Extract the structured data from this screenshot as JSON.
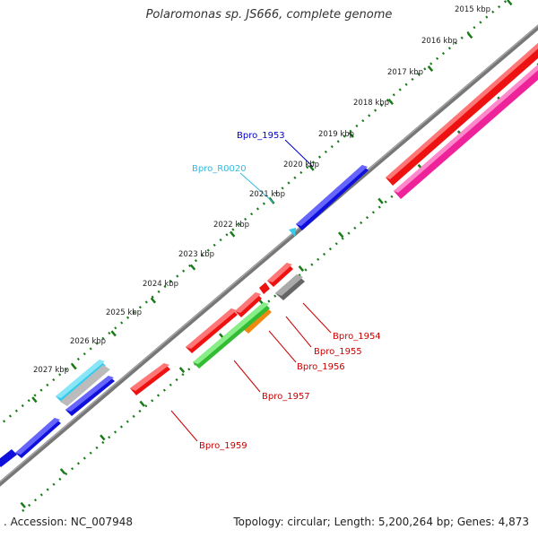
{
  "title": "Polaromonas sp. JS666, complete genome",
  "footer": {
    "accession": ". Accession: NC_007948",
    "topology": "Topology: circular; Length: 5,200,264 bp; Genes: 4,873"
  },
  "colors": {
    "scale": "#1a7a1a",
    "backbone": "#777777",
    "forward_gene": "#1010dd",
    "rrna": "#33ccee",
    "reverse_gene": "#ee1111",
    "pink_gene": "#ee2299",
    "green_gene": "#33bb33",
    "orange_gene": "#ee8811",
    "gray_gene": "#666666",
    "label_reverse": "#cc0000",
    "label_forward": "#0000cc",
    "label_rrna": "#33bbdd"
  },
  "scale_ticks": [
    "2015 kbp",
    "2016 kbp",
    "2017 kbp",
    "2018 kbp",
    "2019 kbp",
    "2020 kbp",
    "2021 kbp",
    "2022 kbp",
    "2023 kbp",
    "2024 kbp",
    "2025 kbp",
    "2026 kbp",
    "2027 kbp"
  ],
  "gene_labels": [
    {
      "text": "Bpro_1953",
      "strand": "forward"
    },
    {
      "text": "Bpro_R0020",
      "strand": "rrna"
    },
    {
      "text": "Bpro_1954",
      "strand": "reverse"
    },
    {
      "text": "Bpro_1955",
      "strand": "reverse"
    },
    {
      "text": "Bpro_1956",
      "strand": "reverse"
    },
    {
      "text": "Bpro_1957",
      "strand": "reverse"
    },
    {
      "text": "Bpro_1959",
      "strand": "reverse"
    }
  ]
}
